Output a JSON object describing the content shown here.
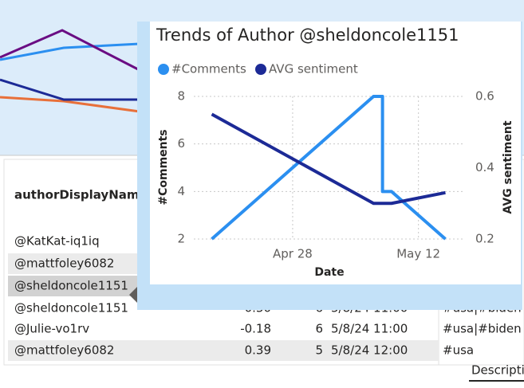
{
  "table": {
    "header": [
      "authorDisplayName"
    ],
    "rows": [
      [
        "@KatKat-iq1iq"
      ],
      [
        "@mattfoley6082"
      ],
      [
        "@sheldoncole1151"
      ],
      [
        "@sheldoncole1151",
        "0.30",
        "6",
        "5/8/24 11:00",
        "#usa|#biden"
      ],
      [
        "@Julie-vo1rv",
        "-0.18",
        "6",
        "5/8/24 11:00",
        "#usa|#biden"
      ],
      [
        "@mattfoley6082",
        "0.39",
        "5",
        "5/8/24 12:00",
        "#usa"
      ]
    ],
    "tab": "Descripti"
  },
  "chart_data": {
    "type": "line",
    "title": "Trends of Author @sheldoncole1151",
    "x_label": "Date",
    "y_label": "#Comments",
    "y2_label": "AVG sentiment",
    "xlim": [
      "Apr 17",
      "May 17"
    ],
    "xticks": [
      "Apr 28",
      "May 12"
    ],
    "ylim": [
      2,
      8
    ],
    "yticks": [
      2,
      4,
      6,
      8
    ],
    "y2lim": [
      0.2,
      0.6
    ],
    "y2ticks": [
      0.2,
      0.4,
      0.6
    ],
    "grid": true,
    "series": [
      {
        "name": "#Comments",
        "color": "#2b8ff0",
        "x": [
          "Apr 19",
          "May 7",
          "May 8",
          "May 8",
          "May 9",
          "May 15"
        ],
        "values": [
          2,
          8,
          8,
          4,
          4,
          2
        ]
      },
      {
        "name": "AVG sentiment",
        "color": "#1c2a96",
        "axis": "y2",
        "x": [
          "Apr 19",
          "May 7",
          "May 9",
          "May 15"
        ],
        "values": [
          0.55,
          0.3,
          0.3,
          0.33
        ]
      }
    ]
  }
}
